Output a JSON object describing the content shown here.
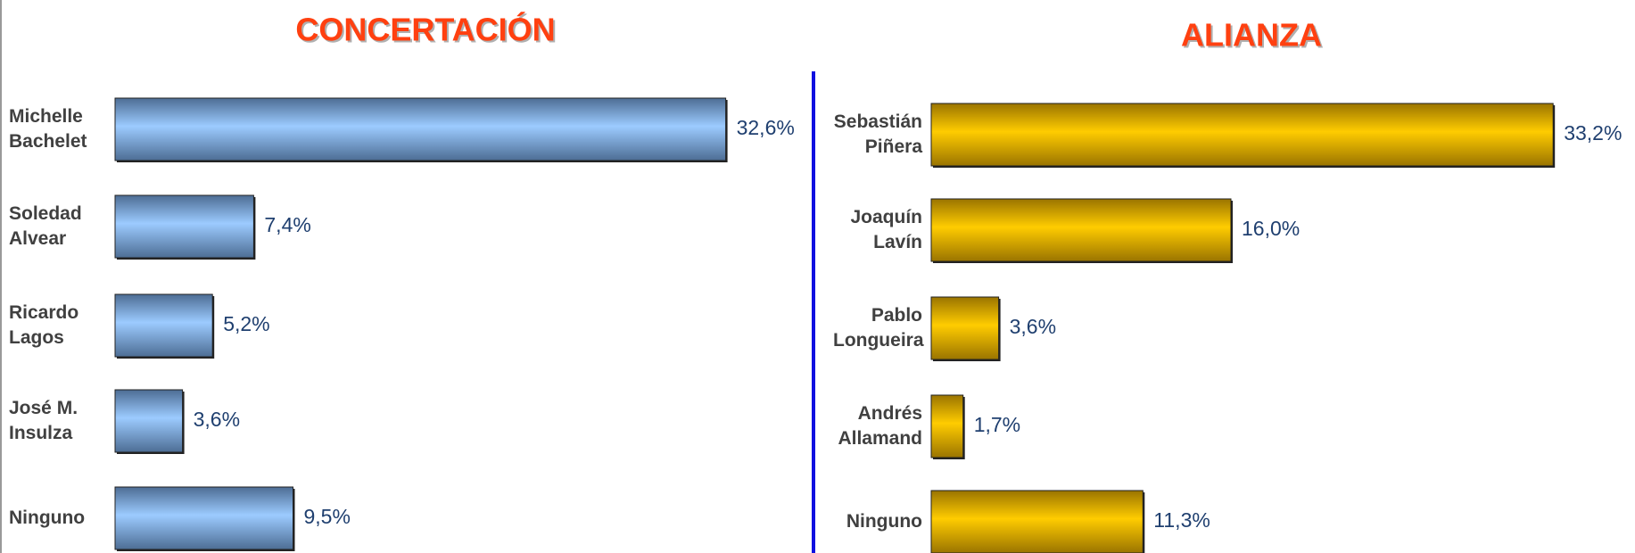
{
  "chart_data": [
    {
      "type": "bar",
      "title": "CONCERTACIÓN",
      "categories": [
        "Michelle Bachelet",
        "Soledad Alvear",
        "Ricardo Lagos",
        "José M. Insulza",
        "Ninguno"
      ],
      "values": [
        32.6,
        7.4,
        5.2,
        3.6,
        9.5
      ],
      "value_labels": [
        "32,6%",
        "7,4%",
        "5,2%",
        "3,6%",
        "9,5%"
      ],
      "color": "#8fbef5"
    },
    {
      "type": "bar",
      "title": "ALIANZA",
      "categories": [
        "Sebastián Piñera",
        "Joaquín Lavín",
        "Pablo Longueira",
        "Andrés Allamand",
        "Ninguno"
      ],
      "values": [
        33.2,
        16.0,
        3.6,
        1.7,
        11.3
      ],
      "value_labels": [
        "33,2%",
        "16,0%",
        "3,6%",
        "1,7%",
        "11,3%"
      ],
      "color": "#ffcc00"
    }
  ]
}
